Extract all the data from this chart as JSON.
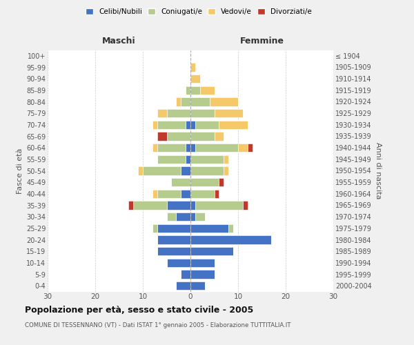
{
  "age_groups": [
    "0-4",
    "5-9",
    "10-14",
    "15-19",
    "20-24",
    "25-29",
    "30-34",
    "35-39",
    "40-44",
    "45-49",
    "50-54",
    "55-59",
    "60-64",
    "65-69",
    "70-74",
    "75-79",
    "80-84",
    "85-89",
    "90-94",
    "95-99",
    "100+"
  ],
  "birth_years": [
    "2000-2004",
    "1995-1999",
    "1990-1994",
    "1985-1989",
    "1980-1984",
    "1975-1979",
    "1970-1974",
    "1965-1969",
    "1960-1964",
    "1955-1959",
    "1950-1954",
    "1945-1949",
    "1940-1944",
    "1935-1939",
    "1930-1934",
    "1925-1929",
    "1920-1924",
    "1915-1919",
    "1910-1914",
    "1905-1909",
    "≤ 1904"
  ],
  "male": {
    "celibi": [
      3,
      2,
      5,
      7,
      7,
      7,
      3,
      5,
      2,
      0,
      2,
      1,
      1,
      0,
      1,
      0,
      0,
      0,
      0,
      0,
      0
    ],
    "coniugati": [
      0,
      0,
      0,
      0,
      0,
      1,
      2,
      7,
      5,
      4,
      8,
      6,
      6,
      5,
      6,
      5,
      2,
      1,
      0,
      0,
      0
    ],
    "vedovi": [
      0,
      0,
      0,
      0,
      0,
      0,
      0,
      0,
      1,
      0,
      1,
      0,
      1,
      0,
      1,
      2,
      1,
      0,
      0,
      0,
      0
    ],
    "divorziati": [
      0,
      0,
      0,
      0,
      0,
      0,
      0,
      1,
      0,
      0,
      0,
      0,
      0,
      2,
      0,
      0,
      0,
      0,
      0,
      0,
      0
    ]
  },
  "female": {
    "nubili": [
      3,
      5,
      5,
      9,
      17,
      8,
      1,
      1,
      0,
      0,
      0,
      0,
      1,
      0,
      1,
      0,
      0,
      0,
      0,
      0,
      0
    ],
    "coniugate": [
      0,
      0,
      0,
      0,
      0,
      1,
      2,
      10,
      5,
      6,
      7,
      7,
      9,
      5,
      5,
      5,
      4,
      2,
      0,
      0,
      0
    ],
    "vedove": [
      0,
      0,
      0,
      0,
      0,
      0,
      0,
      0,
      0,
      0,
      1,
      1,
      2,
      2,
      6,
      6,
      6,
      3,
      2,
      1,
      0
    ],
    "divorziate": [
      0,
      0,
      0,
      0,
      0,
      0,
      0,
      1,
      1,
      1,
      0,
      0,
      1,
      0,
      0,
      0,
      0,
      0,
      0,
      0,
      0
    ]
  },
  "colors": {
    "celibi": "#4472C4",
    "coniugati": "#b5cc8e",
    "vedovi": "#f5c96a",
    "divorziati": "#c0392b"
  },
  "title": "Popolazione per età, sesso e stato civile - 2005",
  "subtitle": "COMUNE DI TESSENNANO (VT) - Dati ISTAT 1° gennaio 2005 - Elaborazione TUTTITALIA.IT",
  "xlabel_left": "Maschi",
  "xlabel_right": "Femmine",
  "ylabel_left": "Fasce di età",
  "ylabel_right": "Anni di nascita",
  "xlim": 30,
  "bg_color": "#f0f0f0",
  "plot_bg": "#ffffff",
  "grid_color": "#cccccc"
}
